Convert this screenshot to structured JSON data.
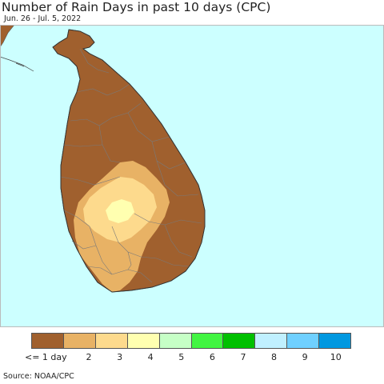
{
  "title": "Number of Rain Days in past 10 days (CPC)",
  "subtitle": "Jun. 26 - Jul. 5, 2022",
  "source": "Source: NOAA/CPC",
  "colors": {
    "sea": "#ccffff",
    "land_base": "#a0602e",
    "boundary": "#7a7a7a"
  },
  "legend": [
    {
      "label": "<= 1 day",
      "color": "#a0602e"
    },
    {
      "label": "2",
      "color": "#e8b265"
    },
    {
      "label": "3",
      "color": "#fdda8d"
    },
    {
      "label": "4",
      "color": "#ffffb0"
    },
    {
      "label": "5",
      "color": "#c6ffc6"
    },
    {
      "label": "6",
      "color": "#42f542"
    },
    {
      "label": "7",
      "color": "#00c000"
    },
    {
      "label": "8",
      "color": "#c0f0ff"
    },
    {
      "label": "9",
      "color": "#6fd0ff"
    },
    {
      "label": "10",
      "color": "#0098e0"
    }
  ]
}
